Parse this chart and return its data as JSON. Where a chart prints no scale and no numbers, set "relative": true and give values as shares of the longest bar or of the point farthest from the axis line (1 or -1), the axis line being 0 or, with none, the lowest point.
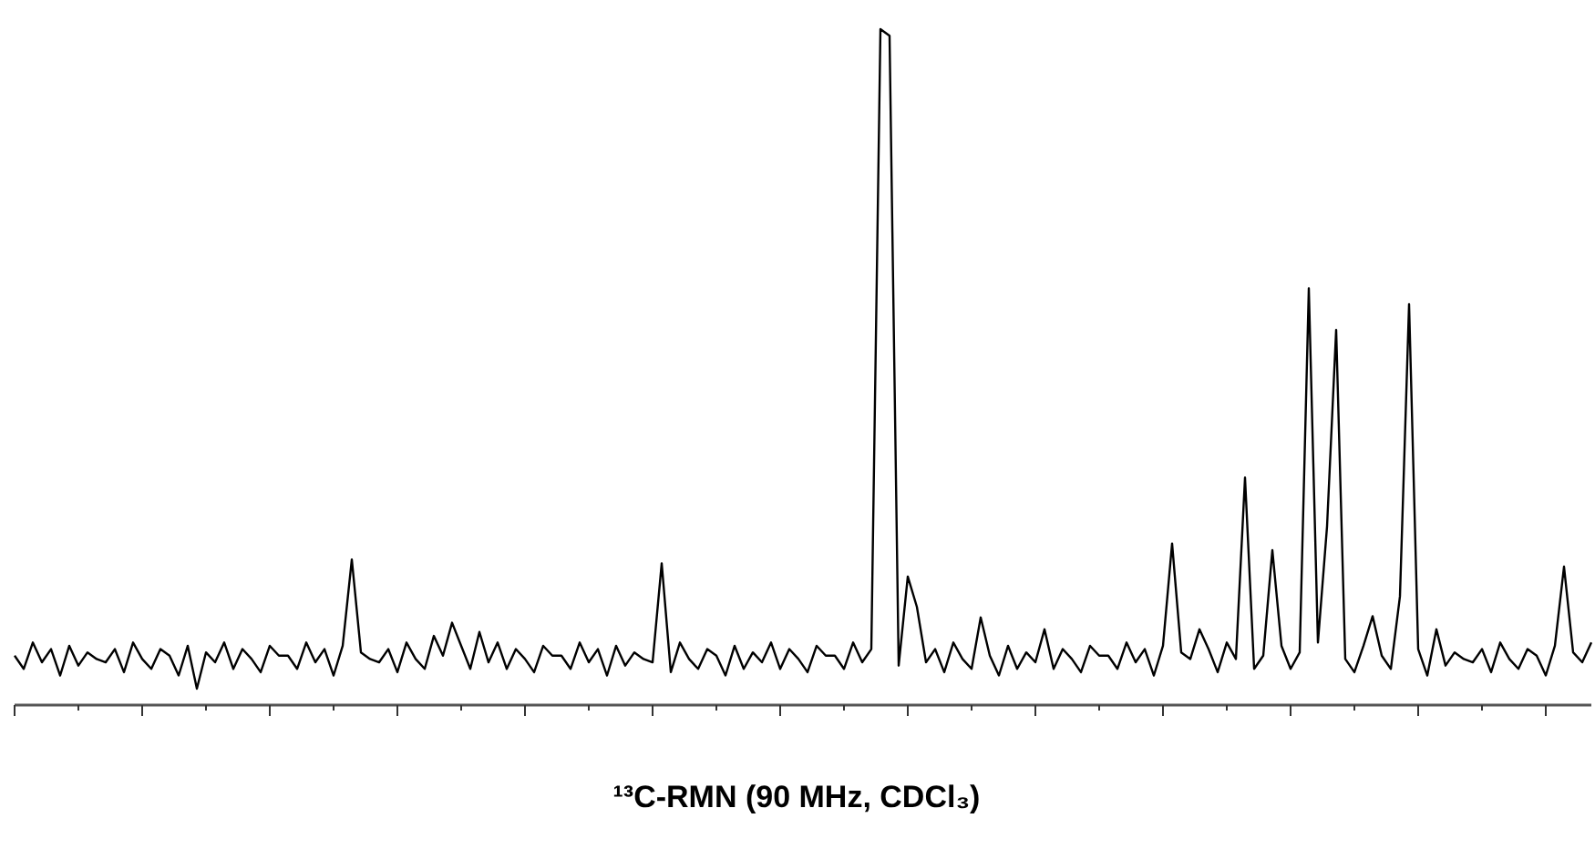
{
  "chart_data": {
    "type": "line",
    "title": "¹³C-RMN (90 MHz, CDCl₃)",
    "relative": true,
    "color": "#000000",
    "marker": "none",
    "categories": [
      null,
      null,
      null,
      null,
      null,
      null,
      null,
      null,
      null,
      null,
      null,
      null,
      null,
      null,
      null,
      null,
      null,
      null,
      null,
      null,
      null,
      null,
      null,
      null,
      null,
      null,
      null,
      null,
      null,
      null,
      null,
      null,
      null,
      null,
      null,
      null,
      null,
      null,
      null,
      null,
      null,
      null,
      null,
      null,
      null,
      null,
      null,
      null,
      null,
      null,
      null,
      null,
      null,
      null,
      null,
      null,
      null,
      null,
      null,
      null,
      null,
      null,
      null,
      null,
      null,
      null,
      null,
      null,
      null,
      null,
      null,
      null,
      null,
      null,
      null,
      null,
      null,
      null,
      null,
      null,
      null,
      null,
      null,
      null,
      null,
      null,
      null,
      null,
      null,
      null,
      null,
      null,
      null,
      null,
      null,
      null,
      null,
      null,
      null,
      null,
      null,
      null,
      null,
      null,
      null,
      null,
      null,
      null,
      null,
      null,
      null,
      null,
      null,
      null,
      null,
      null,
      null,
      null,
      null,
      null,
      null,
      null,
      null,
      null,
      null,
      null,
      null,
      null,
      null,
      null,
      null,
      null,
      null,
      null,
      null,
      null,
      null,
      null,
      null,
      null,
      null,
      null,
      null,
      null,
      null,
      null,
      null,
      null,
      null,
      null,
      null,
      null,
      null,
      null,
      null,
      null,
      null,
      null,
      null,
      null,
      null,
      null,
      null,
      null,
      null,
      null,
      null,
      null,
      null,
      null,
      null,
      null,
      null,
      null
    ],
    "values": [
      0.05,
      0.03,
      0.07,
      0.04,
      0.06,
      0.02,
      0.065,
      0.035,
      0.055,
      0.045,
      0.04,
      0.06,
      0.025,
      0.07,
      0.045,
      0.03,
      0.06,
      0.05,
      0.02,
      0.065,
      0,
      0.055,
      0.04,
      0.07,
      0.03,
      0.06,
      0.045,
      0.025,
      0.065,
      0.05,
      0.05,
      0.03,
      0.07,
      0.04,
      0.06,
      0.02,
      0.065,
      0.196,
      0.055,
      0.045,
      0.04,
      0.06,
      0.025,
      0.07,
      0.045,
      0.03,
      0.08,
      0.05,
      0.1,
      0.065,
      0.03,
      0.086,
      0.04,
      0.07,
      0.03,
      0.06,
      0.045,
      0.025,
      0.065,
      0.05,
      0.05,
      0.03,
      0.07,
      0.04,
      0.06,
      0.02,
      0.065,
      0.035,
      0.055,
      0.045,
      0.04,
      0.19,
      0.025,
      0.07,
      0.045,
      0.03,
      0.06,
      0.05,
      0.02,
      0.065,
      0.03,
      0.055,
      0.04,
      0.07,
      0.03,
      0.06,
      0.045,
      0.025,
      0.065,
      0.05,
      0.05,
      0.03,
      0.07,
      0.04,
      0.06,
      1,
      0.99,
      0.035,
      0.17,
      0.124,
      0.04,
      0.06,
      0.025,
      0.07,
      0.045,
      0.03,
      0.108,
      0.05,
      0.02,
      0.065,
      0.03,
      0.055,
      0.04,
      0.09,
      0.03,
      0.06,
      0.045,
      0.025,
      0.065,
      0.05,
      0.05,
      0.03,
      0.07,
      0.04,
      0.06,
      0.02,
      0.065,
      0.22,
      0.055,
      0.045,
      0.09,
      0.06,
      0.025,
      0.07,
      0.045,
      0.32,
      0.03,
      0.05,
      0.21,
      0.065,
      0.03,
      0.055,
      0.607,
      0.07,
      0.246,
      0.544,
      0.045,
      0.025,
      0.065,
      0.11,
      0.05,
      0.03,
      0.14,
      0.583,
      0.06,
      0.02,
      0.09,
      0.035,
      0.055,
      0.045,
      0.04,
      0.06,
      0.025,
      0.07,
      0.045,
      0.03,
      0.06,
      0.05,
      0.02,
      0.065,
      0.185,
      0.055,
      0.04,
      0.07
    ]
  }
}
